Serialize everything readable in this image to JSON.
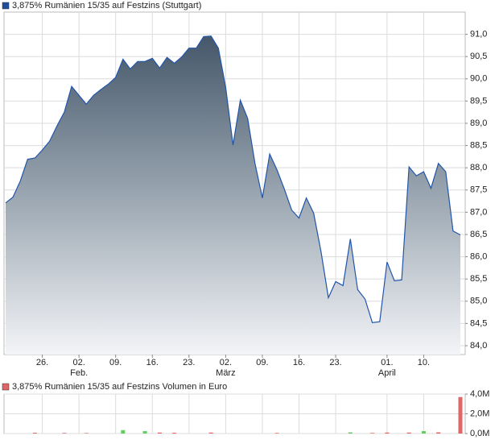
{
  "chart_data": [
    {
      "type": "area",
      "title": "3,875% Rumänien 15/35 auf Festzins (Stuttgart)",
      "legend_color": "#1f4e9c",
      "color": "#2255aa",
      "categories": [
        null,
        null,
        null,
        null,
        null,
        "26.",
        null,
        null,
        null,
        null,
        "02.",
        null,
        null,
        null,
        null,
        "09.",
        null,
        null,
        null,
        null,
        "16.",
        null,
        null,
        null,
        null,
        "23.",
        null,
        null,
        null,
        null,
        "02.",
        null,
        null,
        null,
        null,
        "09.",
        null,
        null,
        null,
        null,
        "16.",
        null,
        null,
        null,
        null,
        "23.",
        null,
        null,
        null,
        null,
        null,
        null,
        "01.",
        null,
        null,
        null,
        null,
        "10.",
        null,
        null,
        null,
        null,
        null
      ],
      "months": [
        null,
        null,
        null,
        null,
        null,
        null,
        null,
        null,
        null,
        null,
        "Feb.",
        null,
        null,
        null,
        null,
        null,
        null,
        null,
        null,
        null,
        null,
        null,
        null,
        null,
        null,
        null,
        null,
        null,
        null,
        null,
        "März",
        null,
        null,
        null,
        null,
        null,
        null,
        null,
        null,
        null,
        null,
        null,
        null,
        null,
        null,
        null,
        null,
        null,
        null,
        null,
        null,
        null,
        "April",
        null,
        null,
        null,
        null,
        null,
        null,
        null,
        null,
        null,
        null
      ],
      "values": [
        87.21,
        87.34,
        87.7,
        88.19,
        88.22,
        88.4,
        88.6,
        88.94,
        89.25,
        89.83,
        89.63,
        89.43,
        89.63,
        89.76,
        89.88,
        90.03,
        90.44,
        90.22,
        90.39,
        90.39,
        90.46,
        90.24,
        90.48,
        90.35,
        90.49,
        90.69,
        90.69,
        90.95,
        90.96,
        90.69,
        89.81,
        88.51,
        89.52,
        89.11,
        88.1,
        87.32,
        88.31,
        87.95,
        87.52,
        87.05,
        86.87,
        87.32,
        86.98,
        86.11,
        85.08,
        85.44,
        85.35,
        86.4,
        85.26,
        85.05,
        84.52,
        84.54,
        85.88,
        85.46,
        85.48,
        88.02,
        87.82,
        87.91,
        87.54,
        88.1,
        87.91,
        86.58,
        86.49
      ],
      "ylim": [
        83.8,
        91.5
      ],
      "yticks": [
        {
          "value": 84.0,
          "label": "84,0"
        },
        {
          "value": 84.5,
          "label": "84,5"
        },
        {
          "value": 85.0,
          "label": "85,0"
        },
        {
          "value": 85.5,
          "label": "85,5"
        },
        {
          "value": 86.0,
          "label": "86,0"
        },
        {
          "value": 86.5,
          "label": "86,5"
        },
        {
          "value": 87.0,
          "label": "87,0"
        },
        {
          "value": 87.5,
          "label": "87,5"
        },
        {
          "value": 88.0,
          "label": "88,0"
        },
        {
          "value": 88.5,
          "label": "88,5"
        },
        {
          "value": 89.0,
          "label": "89,0"
        },
        {
          "value": 89.5,
          "label": "89,5"
        },
        {
          "value": 90.0,
          "label": "90,0"
        },
        {
          "value": 90.5,
          "label": "90,5"
        },
        {
          "value": 91.0,
          "label": "91,0"
        }
      ],
      "grid": true
    },
    {
      "type": "bar",
      "title": "3,875% Rumänien 15/35 auf Festzins Volumen in Euro",
      "legend_color": "#e06666",
      "values": [
        0,
        0,
        0,
        0,
        0.08,
        0,
        0,
        0,
        0.06,
        0,
        0,
        0.05,
        0,
        0,
        0,
        0,
        0.35,
        0,
        0,
        0.25,
        0,
        0.1,
        0,
        0.08,
        0,
        0,
        0,
        0,
        0.1,
        0,
        0,
        0,
        0,
        0,
        0,
        0,
        0,
        0.06,
        0,
        0,
        0,
        0,
        0,
        0,
        0,
        0,
        0,
        0.12,
        0,
        0,
        0.06,
        0,
        0.1,
        0,
        0,
        0.1,
        0,
        0.25,
        0,
        0.12,
        0,
        0,
        3.7
      ],
      "colors": [
        "#e06666",
        "#e06666",
        "#e06666",
        "#e06666",
        "#e06666",
        "#e06666",
        "#e06666",
        "#e06666",
        "#e06666",
        "#e06666",
        "#e06666",
        "#e06666",
        "#e06666",
        "#e06666",
        "#e06666",
        "#e06666",
        "#66cc66",
        "#e06666",
        "#e06666",
        "#66cc66",
        "#e06666",
        "#e06666",
        "#e06666",
        "#e06666",
        "#e06666",
        "#e06666",
        "#e06666",
        "#e06666",
        "#e06666",
        "#e06666",
        "#e06666",
        "#e06666",
        "#e06666",
        "#e06666",
        "#e06666",
        "#e06666",
        "#e06666",
        "#e06666",
        "#e06666",
        "#e06666",
        "#e06666",
        "#e06666",
        "#e06666",
        "#e06666",
        "#e06666",
        "#e06666",
        "#e06666",
        "#66cc66",
        "#e06666",
        "#e06666",
        "#e06666",
        "#e06666",
        "#e06666",
        "#e06666",
        "#e06666",
        "#e06666",
        "#e06666",
        "#66cc66",
        "#e06666",
        "#e06666",
        "#e06666",
        "#e06666",
        "#e06666"
      ],
      "ylim": [
        0,
        4
      ],
      "yticks": [
        {
          "value": 0,
          "label": "0,0M"
        },
        {
          "value": 2,
          "label": "2,0M"
        },
        {
          "value": 4,
          "label": "4,0M"
        }
      ],
      "grid": true
    }
  ]
}
